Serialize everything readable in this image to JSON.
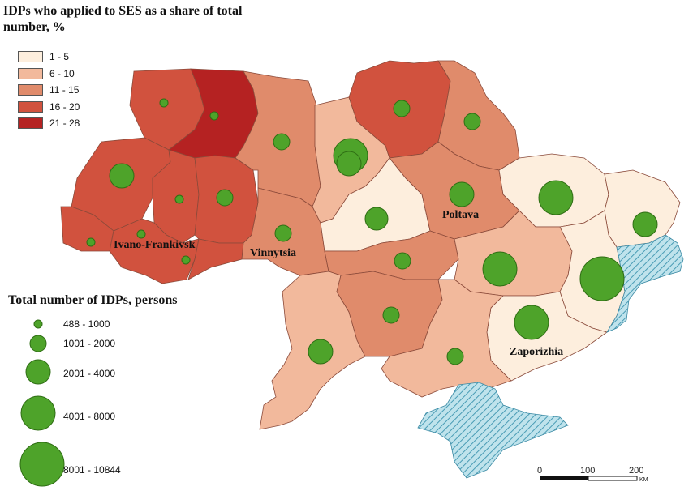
{
  "title": "IDPs who applied to SES as a share of total number, %",
  "share_legend": [
    {
      "label": "1 - 5",
      "color": "#fdeedd"
    },
    {
      "label": "6 - 10",
      "color": "#f2b99c"
    },
    {
      "label": "11 - 15",
      "color": "#e08b6b"
    },
    {
      "label": "16 - 20",
      "color": "#d1523e"
    },
    {
      "label": "21 - 28",
      "color": "#b52222"
    }
  ],
  "size_legend_title": "Total number of IDPs, persons",
  "size_legend": [
    {
      "label": "488 - 1000"
    },
    {
      "label": "1001 - 2000"
    },
    {
      "label": "2001 - 4000"
    },
    {
      "label": "4001 - 8000"
    },
    {
      "label": "8001 - 10844"
    }
  ],
  "cities": {
    "ivano_frankivsk": "Ivano-Frankivsk",
    "vinnytsia": "Vinnytsia",
    "poltava": "Poltava",
    "zaporizhia": "Zaporizhia"
  },
  "scale": {
    "zero": "0",
    "hundred": "100",
    "twohundred": "200",
    "unit": "KM"
  },
  "colors": {
    "bubble": "#4ea32a",
    "bubble_stroke": "#2f6e14",
    "occupied": "#a9d9e5",
    "hatch": "#4a9cb5"
  }
}
